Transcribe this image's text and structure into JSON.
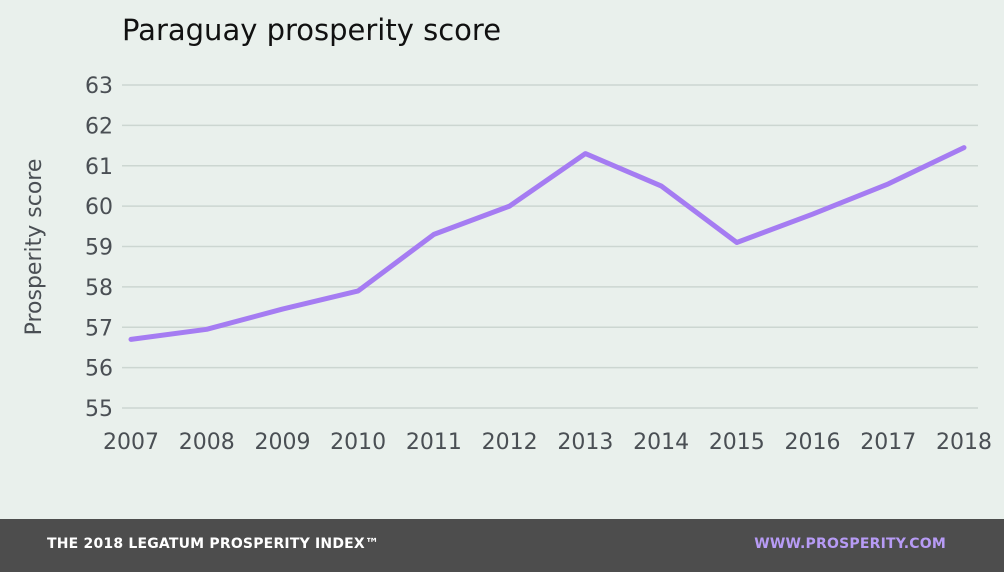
{
  "chart_data": {
    "type": "line",
    "title": "Paraguay prosperity score",
    "xlabel": "",
    "ylabel": "Prosperity score",
    "x": [
      "2007",
      "2008",
      "2009",
      "2010",
      "2011",
      "2012",
      "2013",
      "2014",
      "2015",
      "2016",
      "2017",
      "2018"
    ],
    "series": [
      {
        "values": [
          56.7,
          56.95,
          57.45,
          57.9,
          59.3,
          60.0,
          61.3,
          60.5,
          59.1,
          59.8,
          60.55,
          61.45
        ]
      }
    ],
    "ylim": [
      55,
      63
    ],
    "yticks": [
      55,
      56,
      57,
      58,
      59,
      60,
      61,
      62,
      63
    ],
    "grid": true,
    "line_color": "#a57cf2"
  },
  "footer": {
    "left_text": "THE 2018 LEGATUM PROSPERITY INDEX™",
    "right_text": "WWW.PROSPERITY.COM",
    "right_color": "#b79bf5"
  }
}
